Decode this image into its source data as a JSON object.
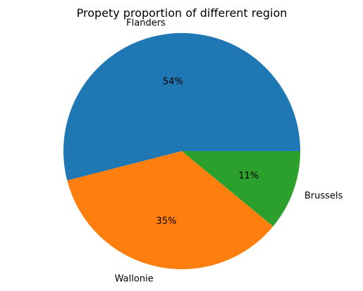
{
  "chart_data": {
    "type": "pie",
    "title": "Propety proportion of different region",
    "slices": [
      {
        "label": "Flanders",
        "value": 54,
        "pct_label": "54%",
        "color": "#1f77b4"
      },
      {
        "label": "Wallonie",
        "value": 35,
        "pct_label": "35%",
        "color": "#ff7f0e"
      },
      {
        "label": "Brussels",
        "value": 11,
        "pct_label": "11%",
        "color": "#2ca02c"
      }
    ],
    "start_angle_deg": 0,
    "direction": "counterclockwise"
  }
}
